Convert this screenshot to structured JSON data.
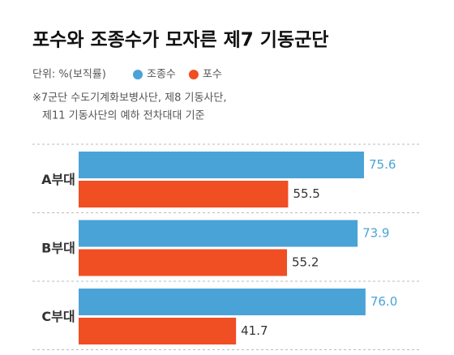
{
  "chart_data": {
    "type": "bar",
    "orientation": "horizontal",
    "title": "포수와 조종수가 모자른 제7 기동군단",
    "subtitle": "단위: %(보직률)",
    "notes": [
      "※7군단 수도기계화보병사단, 제8 기동사단,",
      "제11 기동사단의 예하 전차대대 기준"
    ],
    "categories": [
      "A부대",
      "B부대",
      "C부대"
    ],
    "series": [
      {
        "name": "조종수",
        "color": "#4aa3d6",
        "values": [
          75.6,
          73.9,
          76.0
        ],
        "value_labels": [
          "75.6",
          "73.9",
          "76.0"
        ]
      },
      {
        "name": "포수",
        "color": "#f04e23",
        "values": [
          55.5,
          55.2,
          41.7
        ]
      }
    ]
  }
}
